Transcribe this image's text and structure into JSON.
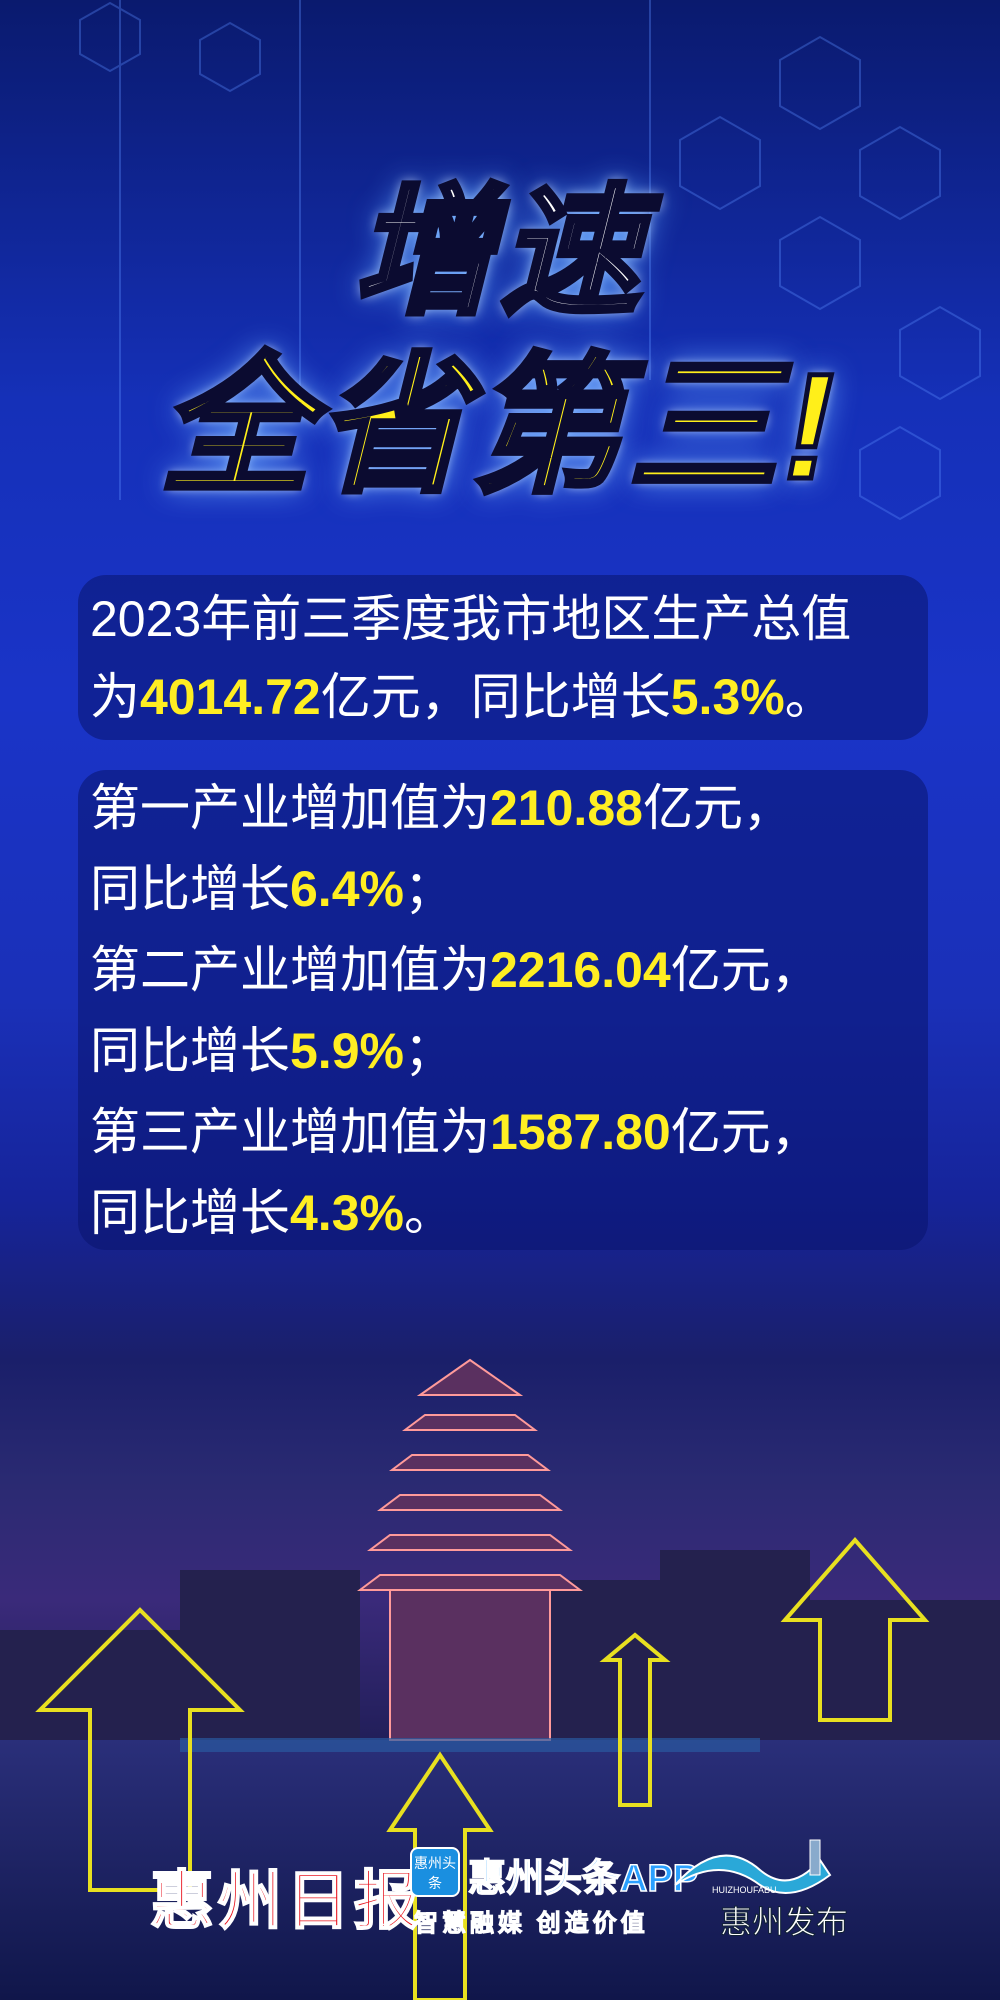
{
  "headline": {
    "line1": "增速",
    "line2": "全省第三!"
  },
  "summary": {
    "line1": "2023年前三季度我市地区生产总值",
    "line2_pre": "为",
    "gdp": "4014.72",
    "line2_mid": "亿元，同比增长",
    "gdp_growth": "5.3%",
    "line2_end": "。"
  },
  "industries": [
    {
      "pre": "第一产业增加值为",
      "value": "210.88",
      "unit": "亿元，",
      "growth_pre": "同比增长",
      "growth": "6.4%",
      "end": "；"
    },
    {
      "pre": "第二产业增加值为",
      "value": "2216.04",
      "unit": "亿元，",
      "growth_pre": "同比增长",
      "growth": "5.9%",
      "end": "；"
    },
    {
      "pre": "第三产业增加值为",
      "value": "1587.80",
      "unit": "亿元，",
      "growth_pre": "同比增长",
      "growth": "4.3%",
      "end": "。"
    }
  ],
  "logos": {
    "huizhou_daily": "惠州日报",
    "toutiao_badge": "惠州头条",
    "toutiao_name": "惠州头条APP",
    "toutiao_slogan": "智慧融媒 创造价值",
    "fabu_en": "HUIZHOUFABU",
    "fabu_cn": "惠州发布"
  },
  "colors": {
    "highlight": "#ffee22",
    "background": "#1a34c8",
    "arrow": "#e8e020"
  }
}
